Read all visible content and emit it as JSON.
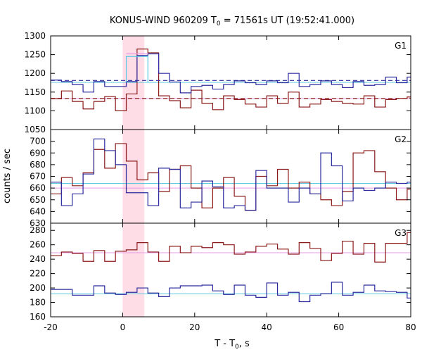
{
  "chart_data": {
    "type": "line",
    "title_parts": {
      "pre": "KONUS-WIND 960209 T",
      "sub": "0",
      "post": " = 71561s UT (19:52:41.000)"
    },
    "xlabel_parts": {
      "pre": "T - T",
      "sub": "0",
      "post": ", s"
    },
    "ylabel": "counts / sec",
    "xlim": [
      -20,
      80
    ],
    "xticks": [
      "-20",
      "0",
      "20",
      "40",
      "60",
      "80"
    ],
    "xtick_values": [
      -20,
      0,
      20,
      40,
      60,
      80
    ],
    "highlight": {
      "from": 0,
      "to": 6,
      "color": "#ffdde6"
    },
    "colors": {
      "red": "#8b1a1a",
      "blue": "#2b2b9e",
      "cyan": "#5bc8e0",
      "pink": "#e69ae6"
    },
    "bins": {
      "start": -20,
      "width": 3
    },
    "panels": [
      {
        "label": "G1",
        "ylim": [
          1050,
          1300
        ],
        "yticks": [
          "1050",
          "1100",
          "1150",
          "1200",
          "1250",
          "1300"
        ],
        "ytick_values": [
          1050,
          1100,
          1150,
          1200,
          1250,
          1300
        ],
        "red": [
          1132,
          1153,
          1125,
          1105,
          1125,
          1138,
          1100,
          1145,
          1265,
          1255,
          1140,
          1127,
          1108,
          1155,
          1120,
          1103,
          1140,
          1130,
          1118,
          1110,
          1140,
          1120,
          1150,
          1110,
          1118,
          1130,
          1125,
          1120,
          1118,
          1140,
          1110,
          1130,
          1133,
          1137
        ],
        "blue": [
          1182,
          1178,
          1170,
          1150,
          1178,
          1165,
          1165,
          1178,
          1248,
          1252,
          1200,
          1177,
          1148,
          1165,
          1168,
          1158,
          1170,
          1180,
          1175,
          1170,
          1180,
          1175,
          1200,
          1165,
          1170,
          1180,
          1170,
          1162,
          1178,
          1168,
          1170,
          1190,
          1175,
          1190
        ],
        "red_fit": 1133,
        "blue_fit": 1181,
        "cyan_level": 1176,
        "pink_level": 1133,
        "red_fit_dash": true,
        "blue_fit_dash": true,
        "peak_overlay": {
          "blue": 1245,
          "pink": 1252,
          "x_from": 1,
          "x_to": 7
        }
      },
      {
        "label": "G2",
        "ylim": [
          630,
          710
        ],
        "yticks": [
          "630",
          "640",
          "650",
          "660",
          "670",
          "680",
          "690",
          "700"
        ],
        "ytick_values": [
          630,
          640,
          650,
          660,
          670,
          680,
          690,
          700
        ],
        "red": [
          655,
          669,
          662,
          673,
          693,
          677,
          698,
          683,
          667,
          673,
          657,
          676,
          679,
          660,
          643,
          660,
          669,
          653,
          641,
          670,
          662,
          676,
          660,
          665,
          655,
          650,
          645,
          657,
          690,
          692,
          674,
          660,
          650,
          659
        ],
        "blue": [
          665,
          645,
          655,
          672,
          702,
          692,
          680,
          656,
          656,
          645,
          677,
          676,
          643,
          648,
          666,
          661,
          643,
          645,
          641,
          675,
          660,
          660,
          648,
          660,
          655,
          690,
          679,
          649,
          660,
          658,
          660,
          665,
          664,
          665
        ],
        "red_fit": 661,
        "blue_fit": 661,
        "cyan_level": 664,
        "pink_level": 660,
        "red_fit_dash": false,
        "blue_fit_dash": false
      },
      {
        "label": "G3",
        "ylim": [
          160,
          290
        ],
        "yticks": [
          "160",
          "180",
          "200",
          "220",
          "240",
          "260",
          "280"
        ],
        "ytick_values": [
          160,
          180,
          200,
          220,
          240,
          260,
          280
        ],
        "red": [
          245,
          250,
          248,
          237,
          252,
          237,
          251,
          253,
          263,
          250,
          237,
          258,
          249,
          258,
          256,
          263,
          260,
          247,
          250,
          258,
          261,
          254,
          247,
          263,
          255,
          238,
          248,
          265,
          247,
          262,
          236,
          262,
          262,
          277
        ],
        "blue": [
          198,
          198,
          190,
          190,
          203,
          193,
          191,
          194,
          200,
          193,
          188,
          200,
          203,
          203,
          204,
          196,
          191,
          204,
          190,
          187,
          207,
          190,
          194,
          181,
          190,
          192,
          208,
          190,
          194,
          204,
          196,
          195,
          194,
          186
        ],
        "red_fit": 249,
        "blue_fit": 192,
        "cyan_level": 192,
        "pink_level": 249,
        "red_fit_dash": false,
        "blue_fit_dash": false
      }
    ]
  }
}
